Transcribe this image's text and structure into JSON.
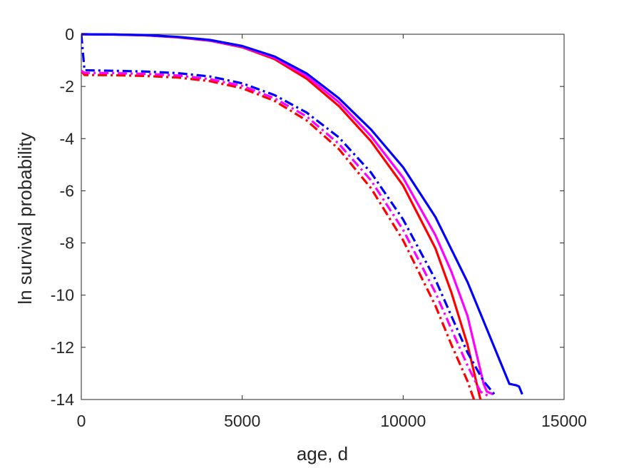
{
  "chart_data": {
    "type": "line",
    "title": "",
    "xlabel": "age, d",
    "ylabel": "ln survival probability",
    "xlim": [
      0,
      15000
    ],
    "ylim": [
      -14,
      0
    ],
    "xticks": [
      0,
      5000,
      10000,
      15000
    ],
    "yticks": [
      0,
      -2,
      -4,
      -6,
      -8,
      -10,
      -12,
      -14
    ],
    "xtick_labels": [
      "0",
      "5000",
      "10000",
      "15000"
    ],
    "ytick_labels": [
      "0",
      "-2",
      "-4",
      "-6",
      "-8",
      "-10",
      "-12",
      "-14"
    ],
    "grid": false,
    "legend": "none",
    "series": [
      {
        "color": "#ff0000",
        "style": "solid",
        "x": [
          0,
          1000,
          2000,
          3000,
          4000,
          5000,
          6000,
          7000,
          8000,
          9000,
          10000,
          11000,
          11500,
          12000,
          12400
        ],
        "y": [
          0,
          -0.01,
          -0.04,
          -0.12,
          -0.25,
          -0.5,
          -0.95,
          -1.7,
          -2.75,
          -4.1,
          -5.8,
          -8.2,
          -9.9,
          -11.9,
          -14
        ]
      },
      {
        "color": "#ff00ff",
        "style": "solid",
        "x": [
          0,
          1000,
          2000,
          3000,
          4000,
          5000,
          6000,
          7000,
          8000,
          9000,
          10000,
          11000,
          11500,
          12000,
          12500,
          12600,
          12800
        ],
        "y": [
          0,
          -0.01,
          -0.04,
          -0.11,
          -0.24,
          -0.48,
          -0.9,
          -1.6,
          -2.6,
          -3.9,
          -5.5,
          -7.7,
          -9.1,
          -10.8,
          -13.4,
          -13.7,
          -13.8
        ]
      },
      {
        "color": "#0000ff",
        "style": "solid",
        "x": [
          0,
          1000,
          2000,
          3000,
          4000,
          5000,
          6000,
          7000,
          8000,
          9000,
          10000,
          11000,
          12000,
          12500,
          13000,
          13300,
          13500,
          13600,
          13700
        ],
        "y": [
          0,
          -0.01,
          -0.03,
          -0.1,
          -0.22,
          -0.45,
          -0.85,
          -1.5,
          -2.45,
          -3.65,
          -5.1,
          -7.0,
          -9.5,
          -11.0,
          -12.5,
          -13.4,
          -13.45,
          -13.5,
          -13.8
        ]
      },
      {
        "color": "#ff0000",
        "style": "dashdot",
        "x": [
          0,
          100,
          1000,
          2000,
          3000,
          4000,
          5000,
          6000,
          7000,
          8000,
          9000,
          10000,
          11000,
          11500,
          12000,
          12200
        ],
        "y": [
          -1.4,
          -1.56,
          -1.57,
          -1.6,
          -1.66,
          -1.8,
          -2.07,
          -2.55,
          -3.3,
          -4.4,
          -5.9,
          -7.9,
          -10.4,
          -11.9,
          -13.3,
          -14
        ]
      },
      {
        "color": "#ff00ff",
        "style": "dashdot",
        "x": [
          0,
          100,
          1000,
          2000,
          3000,
          4000,
          5000,
          6000,
          7000,
          8000,
          9000,
          10000,
          11000,
          11500,
          12000,
          12400,
          12700
        ],
        "y": [
          -1.4,
          -1.48,
          -1.49,
          -1.52,
          -1.58,
          -1.72,
          -1.98,
          -2.45,
          -3.15,
          -4.2,
          -5.6,
          -7.5,
          -9.9,
          -11.3,
          -12.7,
          -13.7,
          -13.9
        ]
      },
      {
        "color": "#0000ff",
        "style": "dashdot",
        "x": [
          0,
          100,
          1000,
          2000,
          3000,
          4000,
          5000,
          6000,
          7000,
          8000,
          9000,
          10000,
          11000,
          11500,
          12000,
          12500,
          12900
        ],
        "y": [
          0,
          -1.38,
          -1.4,
          -1.43,
          -1.49,
          -1.62,
          -1.88,
          -2.33,
          -3.0,
          -3.95,
          -5.3,
          -7.1,
          -9.4,
          -10.8,
          -12.2,
          -13.3,
          -13.9
        ]
      }
    ]
  }
}
